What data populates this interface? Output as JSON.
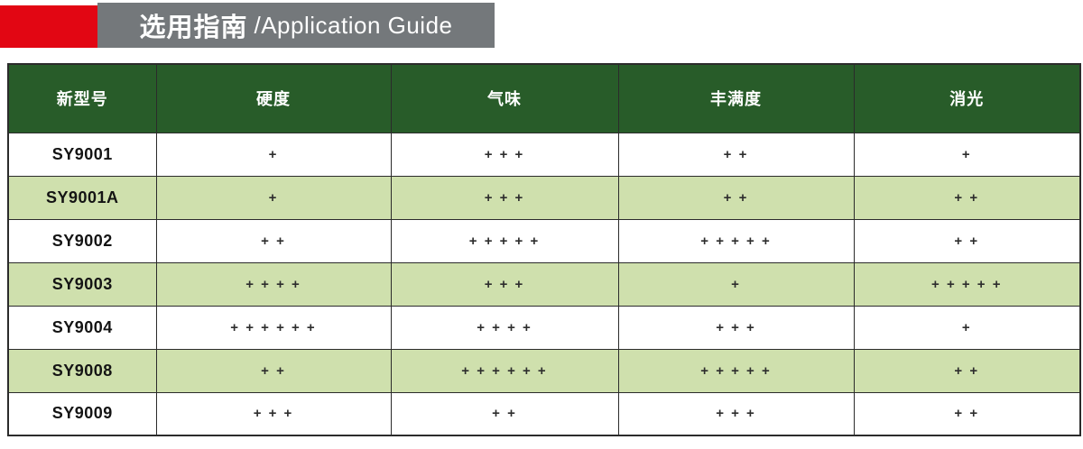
{
  "banner": {
    "title_cn": "选用指南",
    "title_en": "/Application Guide"
  },
  "colors": {
    "red_accent": "#e20613",
    "banner_gray": "#74787b",
    "table_header_green": "#285c29",
    "alt_row_green": "#cfe0ad"
  },
  "table": {
    "columns": [
      "新型号",
      "硬度",
      "气味",
      "丰满度",
      "消光"
    ],
    "rows": [
      {
        "model": "SY9001",
        "values": [
          "+",
          "+ + +",
          "+ +",
          "+"
        ]
      },
      {
        "model": "SY9001A",
        "values": [
          "+",
          "+ + +",
          "+ +",
          "+ +"
        ]
      },
      {
        "model": "SY9002",
        "values": [
          "+ +",
          "+ + + + +",
          "+ + + + +",
          "+ +"
        ]
      },
      {
        "model": "SY9003",
        "values": [
          "+ + + +",
          "+ + +",
          "+",
          "+ + + + +"
        ]
      },
      {
        "model": "SY9004",
        "values": [
          "+ + + + + +",
          "+ + + +",
          "+ + +",
          "+"
        ]
      },
      {
        "model": "SY9008",
        "values": [
          "+ +",
          "+ + + + + +",
          "+ + + + +",
          "+ +"
        ]
      },
      {
        "model": "SY9009",
        "values": [
          "+ + +",
          "+ +",
          "+ + +",
          "+ +"
        ]
      }
    ]
  }
}
